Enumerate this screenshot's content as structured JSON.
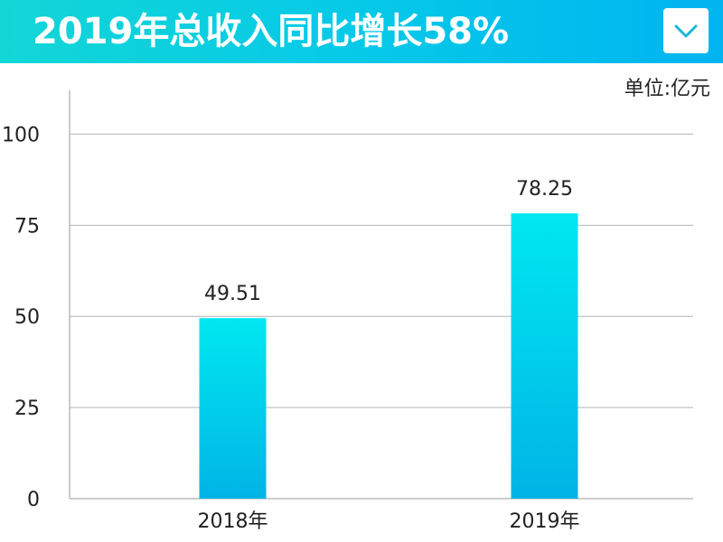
{
  "header": {
    "title": "2019年总收入同比增长58%",
    "accent_gradient": [
      "#12d6d6",
      "#00b4f0"
    ],
    "menu_icon": "chevron-down-icon"
  },
  "chart_data": {
    "type": "bar",
    "title": "2019年总收入同比增长58%",
    "unit": "单位:亿元",
    "categories": [
      "2018年",
      "2019年"
    ],
    "values": [
      49.51,
      78.25
    ],
    "value_labels": [
      "49.51",
      "78.25"
    ],
    "ylim": [
      0,
      112
    ],
    "yticks": [
      0,
      25,
      50,
      75,
      100
    ],
    "grid": true,
    "bar_gradient": [
      "#00e8f0",
      "#00b4e6"
    ]
  }
}
